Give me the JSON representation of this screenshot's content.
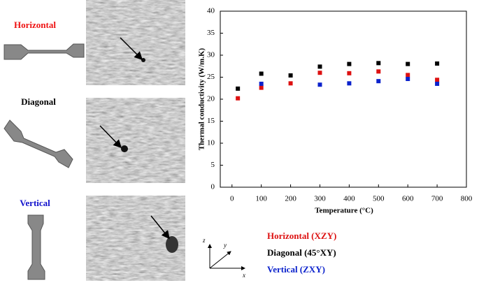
{
  "panels": {
    "labels": [
      {
        "text": "Horizontal",
        "color": "#ee1111"
      },
      {
        "text": "Diagonal",
        "color": "#000000"
      },
      {
        "text": "Vertical",
        "color": "#1111cc"
      }
    ]
  },
  "axes_icon": {
    "z": "z",
    "y": "y",
    "x": "x"
  },
  "chart_data": {
    "type": "scatter",
    "x_label": "Temperature (°C)",
    "y_label": "Thermal conductivity (W/m.K)",
    "x": [
      20,
      100,
      200,
      300,
      400,
      500,
      600,
      700
    ],
    "series": [
      {
        "name": "Horizontal (XZY)",
        "color": "#dd1111",
        "values": [
          20.2,
          22.6,
          23.6,
          26.0,
          25.9,
          26.3,
          25.5,
          24.4
        ]
      },
      {
        "name": "Diagonal (45°XY)",
        "color": "#000000",
        "values": [
          22.4,
          25.8,
          25.4,
          27.4,
          28.0,
          28.2,
          28.0,
          28.1
        ]
      },
      {
        "name": "Vertical (ZXY)",
        "color": "#0b22cc",
        "values": [
          null,
          23.5,
          null,
          23.3,
          23.6,
          24.1,
          24.6,
          23.5
        ]
      }
    ],
    "xlim": [
      -40,
      800
    ],
    "ylim": [
      0,
      40
    ],
    "xticks": [
      0,
      100,
      200,
      300,
      400,
      500,
      600,
      700,
      800
    ],
    "yticks": [
      0,
      5,
      10,
      15,
      20,
      25,
      30,
      35,
      40
    ],
    "grid": false
  }
}
